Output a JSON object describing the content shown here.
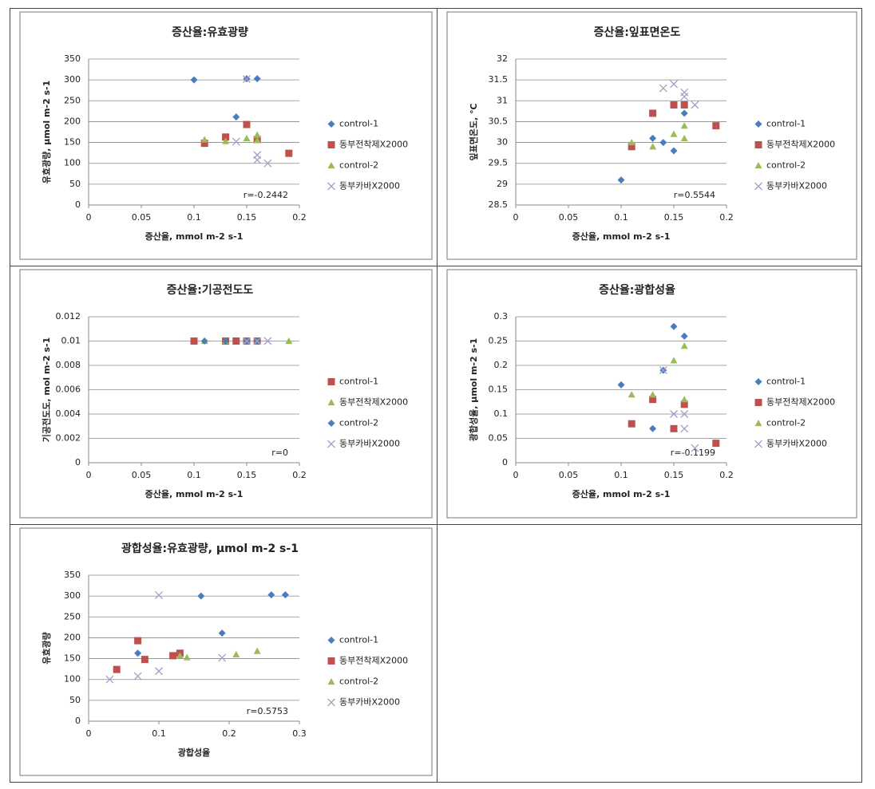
{
  "chart_data": [
    {
      "type": "scatter",
      "title": "증산율:유효광량",
      "xlabel": "증산율, mmol m-2 s-1",
      "ylabel": "유효광량, μmol m-2 s-1",
      "annotation": "r=-0.2442",
      "xlim": [
        0,
        0.2
      ],
      "xticks": [
        0,
        0.05,
        0.1,
        0.15,
        0.2
      ],
      "ylim": [
        0,
        350
      ],
      "yticks": [
        0,
        50,
        100,
        150,
        200,
        250,
        300,
        350
      ],
      "grid": true,
      "legend": "right",
      "series": [
        {
          "name": "control-1",
          "color": "#4a7ebb",
          "marker": "diamond",
          "x": [
            0.1,
            0.15,
            0.16,
            0.14,
            0.16
          ],
          "values": [
            300,
            303,
            303,
            211,
            163
          ]
        },
        {
          "name": "동부전착제X2000",
          "color": "#c0504d",
          "marker": "square",
          "x": [
            0.11,
            0.13,
            0.15,
            0.19,
            0.16
          ],
          "values": [
            148,
            163,
            193,
            124,
            157
          ]
        },
        {
          "name": "control-2",
          "color": "#9bbb59",
          "marker": "triangle",
          "x": [
            0.11,
            0.13,
            0.15,
            0.16,
            0.16
          ],
          "values": [
            157,
            153,
            160,
            168,
            155
          ]
        },
        {
          "name": "동부카바X2000",
          "color": "#a99bc9",
          "marker": "cross",
          "x": [
            0.14,
            0.16,
            0.16,
            0.17,
            0.15
          ],
          "values": [
            152,
            120,
            108,
            100,
            302
          ]
        }
      ]
    },
    {
      "type": "scatter",
      "title": "증산율:잎표면온도",
      "xlabel": "증산율, mmol m-2 s-1",
      "ylabel": "잎표면온도, ℃",
      "annotation": "r=0.5544",
      "xlim": [
        0,
        0.2
      ],
      "xticks": [
        0,
        0.05,
        0.1,
        0.15,
        0.2
      ],
      "ylim": [
        28.5,
        32
      ],
      "yticks": [
        28.5,
        29,
        29.5,
        30,
        30.5,
        31,
        31.5,
        32
      ],
      "grid": true,
      "legend": "right",
      "series": [
        {
          "name": "control-1",
          "color": "#4a7ebb",
          "marker": "diamond",
          "x": [
            0.1,
            0.13,
            0.14,
            0.15,
            0.16
          ],
          "values": [
            29.1,
            30.1,
            30,
            29.8,
            30.7
          ]
        },
        {
          "name": "동부전착제X2000",
          "color": "#c0504d",
          "marker": "square",
          "x": [
            0.11,
            0.13,
            0.15,
            0.16,
            0.19
          ],
          "values": [
            29.9,
            30.7,
            30.9,
            30.9,
            30.4
          ]
        },
        {
          "name": "control-2",
          "color": "#9bbb59",
          "marker": "triangle",
          "x": [
            0.11,
            0.13,
            0.15,
            0.16,
            0.16
          ],
          "values": [
            30,
            29.9,
            30.2,
            30.4,
            30.1
          ]
        },
        {
          "name": "동부카바X2000",
          "color": "#a99bc9",
          "marker": "cross",
          "x": [
            0.14,
            0.15,
            0.16,
            0.16,
            0.17
          ],
          "values": [
            31.3,
            31.4,
            31.2,
            31.1,
            30.9
          ]
        }
      ]
    },
    {
      "type": "scatter",
      "title": "증산율:기공전도도",
      "xlabel": "증산율, mmol m-2 s-1",
      "ylabel": "기공전도도, mol m-2 s-1",
      "annotation": "r=0",
      "xlim": [
        0,
        0.2
      ],
      "xticks": [
        0,
        0.05,
        0.1,
        0.15,
        0.2
      ],
      "ylim": [
        0,
        0.012
      ],
      "yticks": [
        0,
        0.002,
        0.004,
        0.006,
        0.008,
        0.01,
        0.012
      ],
      "grid": true,
      "legend": "right",
      "series": [
        {
          "name": "control-1",
          "color": "#c0504d",
          "marker": "square",
          "x": [
            0.1,
            0.13,
            0.14,
            0.15,
            0.16
          ],
          "values": [
            0.01,
            0.01,
            0.01,
            0.01,
            0.01
          ]
        },
        {
          "name": "동부전착제X2000",
          "color": "#9bbb59",
          "marker": "triangle",
          "x": [
            0.11,
            0.13,
            0.15,
            0.16,
            0.19
          ],
          "values": [
            0.01,
            0.01,
            0.01,
            0.01,
            0.01
          ]
        },
        {
          "name": "control-2",
          "color": "#4a7ebb",
          "marker": "diamond",
          "x": [
            0.11,
            0.13,
            0.15,
            0.16
          ],
          "values": [
            0.01,
            0.01,
            0.01,
            0.01
          ]
        },
        {
          "name": "동부카바X2000",
          "color": "#a99bc9",
          "marker": "cross",
          "x": [
            0.15,
            0.16,
            0.17
          ],
          "values": [
            0.01,
            0.01,
            0.01
          ]
        }
      ]
    },
    {
      "type": "scatter",
      "title": "증산율:광합성율",
      "xlabel": "증산율, mmol m-2 s-1",
      "ylabel": "광합성율, μmol m-2 s-1",
      "annotation": "r=-0.1199",
      "xlim": [
        0,
        0.2
      ],
      "xticks": [
        0,
        0.05,
        0.1,
        0.15,
        0.2
      ],
      "ylim": [
        0,
        0.3
      ],
      "yticks": [
        0,
        0.05,
        0.1,
        0.15,
        0.2,
        0.25,
        0.3
      ],
      "grid": true,
      "legend": "right",
      "series": [
        {
          "name": "control-1",
          "color": "#4a7ebb",
          "marker": "diamond",
          "x": [
            0.1,
            0.13,
            0.14,
            0.15,
            0.16
          ],
          "values": [
            0.16,
            0.07,
            0.19,
            0.28,
            0.26
          ]
        },
        {
          "name": "동부전착제X2000",
          "color": "#c0504d",
          "marker": "square",
          "x": [
            0.11,
            0.13,
            0.15,
            0.16,
            0.19
          ],
          "values": [
            0.08,
            0.13,
            0.07,
            0.12,
            0.04
          ]
        },
        {
          "name": "control-2",
          "color": "#9bbb59",
          "marker": "triangle",
          "x": [
            0.11,
            0.13,
            0.15,
            0.16,
            0.16
          ],
          "values": [
            0.14,
            0.14,
            0.21,
            0.24,
            0.13
          ]
        },
        {
          "name": "동부카바X2000",
          "color": "#a99bc9",
          "marker": "cross",
          "x": [
            0.14,
            0.15,
            0.16,
            0.16,
            0.17
          ],
          "values": [
            0.19,
            0.1,
            0.1,
            0.07,
            0.03
          ]
        }
      ]
    },
    {
      "type": "scatter",
      "title": "광합성율:유효광량, μmol m-2 s-1",
      "xlabel": "광합성율",
      "ylabel": "유효광량",
      "annotation": "r=0.5753",
      "xlim": [
        0,
        0.3
      ],
      "xticks": [
        0,
        0.1,
        0.2,
        0.3
      ],
      "ylim": [
        0,
        350
      ],
      "yticks": [
        0,
        50,
        100,
        150,
        200,
        250,
        300,
        350
      ],
      "grid": true,
      "legend": "right",
      "series": [
        {
          "name": "control-1",
          "color": "#4a7ebb",
          "marker": "diamond",
          "x": [
            0.07,
            0.16,
            0.19,
            0.26,
            0.28
          ],
          "values": [
            163,
            300,
            211,
            303,
            303
          ]
        },
        {
          "name": "동부전착제X2000",
          "color": "#c0504d",
          "marker": "square",
          "x": [
            0.04,
            0.07,
            0.08,
            0.12,
            0.13
          ],
          "values": [
            124,
            193,
            148,
            157,
            163
          ]
        },
        {
          "name": "control-2",
          "color": "#9bbb59",
          "marker": "triangle",
          "x": [
            0.13,
            0.14,
            0.21,
            0.24
          ],
          "values": [
            157,
            153,
            160,
            168
          ]
        },
        {
          "name": "동부카바X2000",
          "color": "#a99bc9",
          "marker": "cross",
          "x": [
            0.03,
            0.07,
            0.1,
            0.1,
            0.19
          ],
          "values": [
            100,
            108,
            120,
            302,
            152
          ]
        }
      ]
    }
  ]
}
